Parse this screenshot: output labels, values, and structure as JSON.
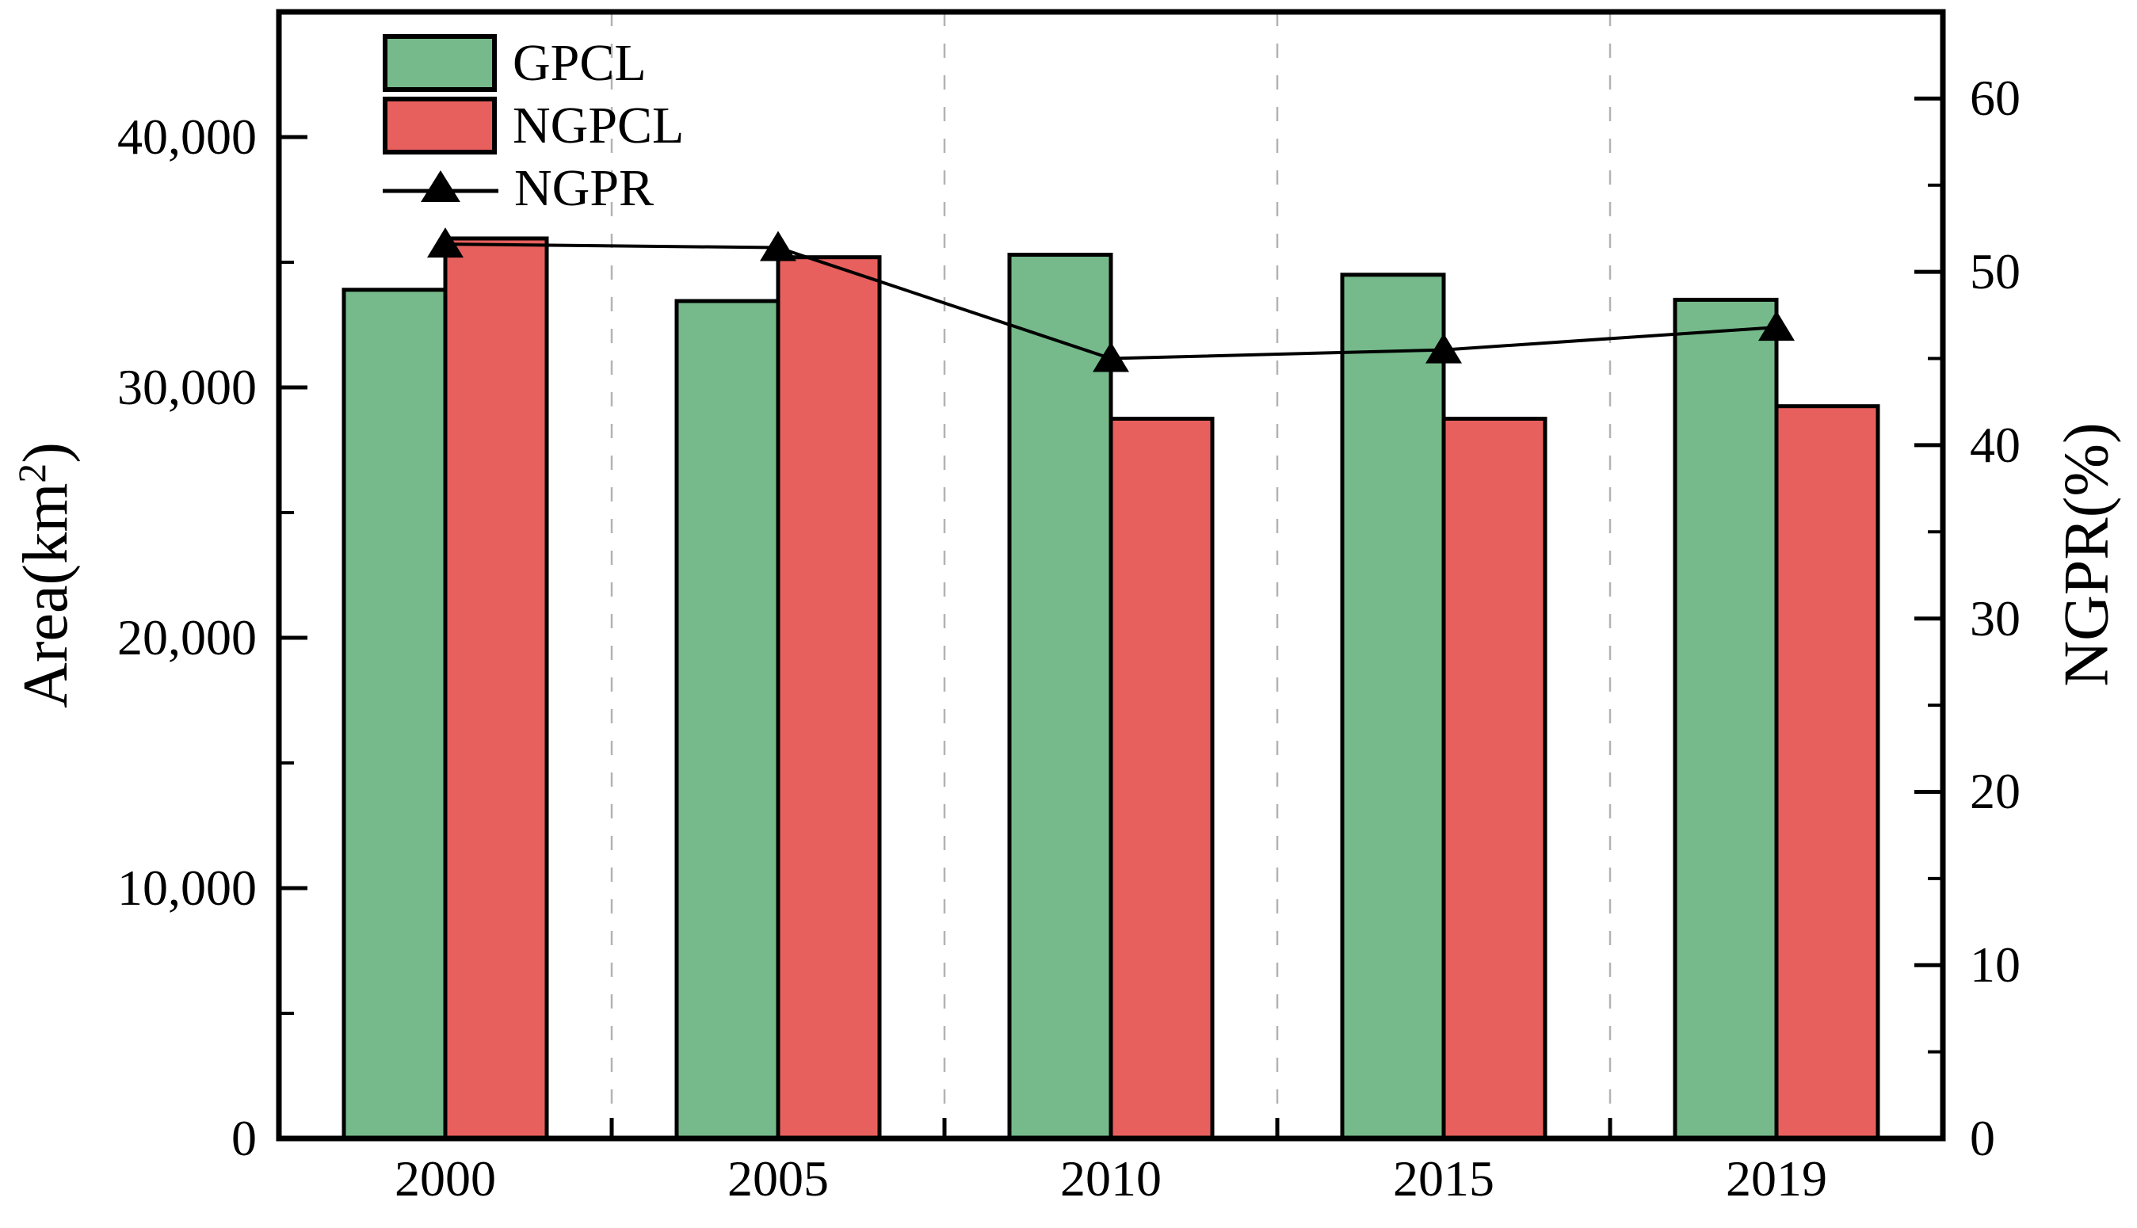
{
  "chart_data": {
    "type": "bar",
    "categories": [
      "2000",
      "2005",
      "2010",
      "2015",
      "2019"
    ],
    "series": [
      {
        "name": "GPCL",
        "type": "bar",
        "axis": "left",
        "color": "#76ba8b",
        "values": [
          33900,
          33450,
          35300,
          34500,
          33500
        ]
      },
      {
        "name": "NGPCL",
        "type": "bar",
        "axis": "left",
        "color": "#e8605d",
        "values": [
          35950,
          35200,
          28750,
          28750,
          29250
        ]
      },
      {
        "name": "NGPR",
        "type": "line",
        "axis": "right",
        "color": "#000000",
        "marker": "triangle-up",
        "values": [
          51.6,
          51.4,
          45.0,
          45.5,
          46.8
        ]
      }
    ],
    "left_axis": {
      "label_prefix": "Area(km",
      "label_sup": "2",
      "label_suffix": ")",
      "range": [
        0,
        45000
      ],
      "tick_values": [
        0,
        10000,
        20000,
        30000,
        40000
      ],
      "tick_labels": [
        "0",
        "10,000",
        "20,000",
        "30,000",
        "40,000"
      ],
      "minor_step": 5000
    },
    "right_axis": {
      "label": "NGPR(%)",
      "range": [
        0,
        65
      ],
      "tick_values": [
        0,
        10,
        20,
        30,
        40,
        50,
        60
      ],
      "tick_labels": [
        "0",
        "10",
        "20",
        "30",
        "40",
        "50",
        "60"
      ],
      "minor_step": 5
    },
    "x_axis": {
      "tick_labels": [
        "2000",
        "2005",
        "2010",
        "2015",
        "2019"
      ]
    },
    "grid": {
      "vertical_dashed": true,
      "color": "#b3b3b3"
    },
    "frame_color": "#000000",
    "legend_position": "top-left-inside",
    "title": "",
    "xlabel": ""
  }
}
